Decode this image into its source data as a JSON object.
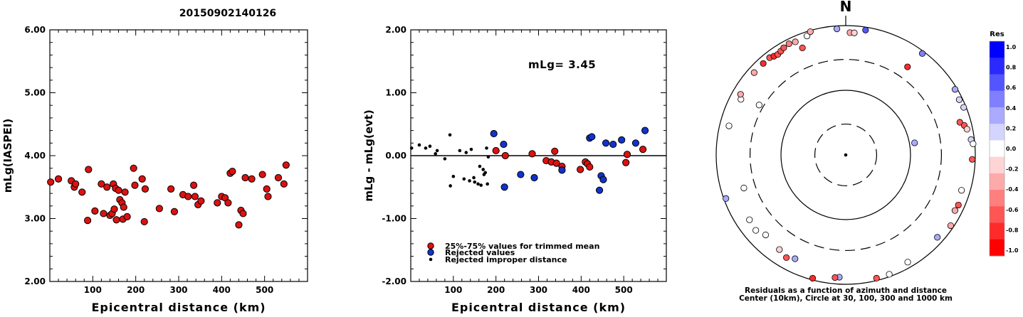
{
  "figure_title": "20150902140126",
  "chart_data": [
    {
      "type": "scatter",
      "id": "magnitude",
      "xlabel": "Epicentral distance (km)",
      "ylabel": "mLg(IASPEI)",
      "xlim": [
        0,
        600
      ],
      "ylim": [
        2.0,
        6.0
      ],
      "xticks": [
        100,
        200,
        300,
        400,
        500
      ],
      "yticks": [
        "6.00",
        "5.00",
        "4.00",
        "3.00",
        "2.00"
      ],
      "ytick_values": [
        6,
        5,
        4,
        3,
        2
      ],
      "marker_color": "#dd1111",
      "points": [
        [
          2,
          3.58
        ],
        [
          20,
          3.63
        ],
        [
          50,
          3.6
        ],
        [
          57,
          3.5
        ],
        [
          60,
          3.55
        ],
        [
          75,
          3.42
        ],
        [
          88,
          2.97
        ],
        [
          90,
          3.78
        ],
        [
          105,
          3.12
        ],
        [
          120,
          3.55
        ],
        [
          125,
          3.08
        ],
        [
          133,
          3.5
        ],
        [
          140,
          3.05
        ],
        [
          145,
          3.08
        ],
        [
          148,
          3.55
        ],
        [
          150,
          3.15
        ],
        [
          153,
          3.48
        ],
        [
          155,
          2.98
        ],
        [
          160,
          3.45
        ],
        [
          163,
          3.3
        ],
        [
          168,
          3.25
        ],
        [
          170,
          2.99
        ],
        [
          172,
          3.18
        ],
        [
          175,
          3.42
        ],
        [
          180,
          3.03
        ],
        [
          195,
          3.8
        ],
        [
          198,
          3.53
        ],
        [
          215,
          3.63
        ],
        [
          220,
          2.95
        ],
        [
          222,
          3.47
        ],
        [
          255,
          3.16
        ],
        [
          282,
          3.47
        ],
        [
          290,
          3.11
        ],
        [
          310,
          3.38
        ],
        [
          322,
          3.35
        ],
        [
          335,
          3.53
        ],
        [
          338,
          3.35
        ],
        [
          345,
          3.22
        ],
        [
          352,
          3.28
        ],
        [
          390,
          3.25
        ],
        [
          400,
          3.35
        ],
        [
          408,
          3.33
        ],
        [
          415,
          3.25
        ],
        [
          420,
          3.72
        ],
        [
          425,
          3.75
        ],
        [
          440,
          2.9
        ],
        [
          445,
          3.13
        ],
        [
          450,
          3.08
        ],
        [
          455,
          3.65
        ],
        [
          470,
          3.63
        ],
        [
          495,
          3.7
        ],
        [
          505,
          3.47
        ],
        [
          508,
          3.35
        ],
        [
          532,
          3.65
        ],
        [
          545,
          3.55
        ],
        [
          550,
          3.85
        ]
      ]
    },
    {
      "type": "scatter",
      "id": "residuals",
      "xlabel": "Epicentral distance (km)",
      "ylabel": "mLg - mLg(evt)",
      "xlim": [
        0,
        600
      ],
      "ylim": [
        -2.0,
        2.0
      ],
      "xticks": [
        100,
        200,
        300,
        400,
        500
      ],
      "yticks": [
        "2.00",
        "1.00",
        "0.00",
        "-1.00",
        "-2.00"
      ],
      "ytick_values": [
        2,
        1,
        0,
        -1,
        -2
      ],
      "annotation": "mLg= 3.45",
      "series": [
        {
          "name": "25%-75% values for trimmed mean",
          "color": "#dd1111",
          "marker": "circle",
          "points": [
            [
              200,
              0.08
            ],
            [
              222,
              0.0
            ],
            [
              285,
              0.03
            ],
            [
              318,
              -0.08
            ],
            [
              330,
              -0.1
            ],
            [
              338,
              0.07
            ],
            [
              342,
              -0.12
            ],
            [
              355,
              -0.17
            ],
            [
              398,
              -0.22
            ],
            [
              410,
              -0.1
            ],
            [
              415,
              -0.13
            ],
            [
              420,
              -0.18
            ],
            [
              505,
              -0.11
            ],
            [
              508,
              0.02
            ],
            [
              545,
              0.1
            ]
          ]
        },
        {
          "name": "Rejected values",
          "color": "#1133cc",
          "marker": "circle",
          "points": [
            [
              195,
              0.35
            ],
            [
              218,
              0.18
            ],
            [
              220,
              -0.5
            ],
            [
              258,
              -0.3
            ],
            [
              290,
              -0.35
            ],
            [
              355,
              -0.23
            ],
            [
              420,
              0.28
            ],
            [
              425,
              0.3
            ],
            [
              443,
              -0.55
            ],
            [
              447,
              -0.32
            ],
            [
              452,
              -0.38
            ],
            [
              458,
              0.2
            ],
            [
              475,
              0.18
            ],
            [
              495,
              0.25
            ],
            [
              528,
              0.2
            ],
            [
              550,
              0.4
            ]
          ]
        },
        {
          "name": "Rejected improper distance",
          "color": "#000000",
          "marker": "dot",
          "points": [
            [
              2,
              0.12
            ],
            [
              20,
              0.17
            ],
            [
              35,
              0.12
            ],
            [
              45,
              0.15
            ],
            [
              58,
              0.03
            ],
            [
              62,
              0.08
            ],
            [
              80,
              -0.05
            ],
            [
              92,
              0.33
            ],
            [
              93,
              -0.48
            ],
            [
              100,
              -0.33
            ],
            [
              115,
              0.08
            ],
            [
              125,
              -0.37
            ],
            [
              130,
              0.05
            ],
            [
              138,
              -0.4
            ],
            [
              142,
              0.1
            ],
            [
              148,
              -0.35
            ],
            [
              150,
              -0.42
            ],
            [
              158,
              -0.45
            ],
            [
              162,
              -0.17
            ],
            [
              165,
              -0.47
            ],
            [
              170,
              -0.22
            ],
            [
              172,
              -0.3
            ],
            [
              175,
              -0.27
            ],
            [
              178,
              0.12
            ],
            [
              180,
              -0.45
            ],
            [
              182,
              -0.02
            ]
          ]
        }
      ]
    },
    {
      "type": "polar_scatter",
      "id": "azimuth",
      "north_label": "N",
      "caption_line1": "Residuals as a function of azimuth and distance",
      "caption_line2": "Center (10km), Circle at 30, 100, 300 and 1000 km",
      "rings_km": [
        30,
        100,
        300,
        1000
      ],
      "colorbar": {
        "title": "Res",
        "ticks": [
          "1.0",
          "0.8",
          "0.6",
          "0.4",
          "0.2",
          "0.0",
          "-0.2",
          "-0.4",
          "-0.6",
          "-0.8",
          "-1.0"
        ],
        "colors": [
          "#0000ff",
          "#2a2aff",
          "#5555ff",
          "#7f7fff",
          "#aaaaff",
          "#d4d4ff",
          "#ffffff",
          "#ffd4d4",
          "#ffaaaa",
          "#ff7f7f",
          "#ff5555",
          "#ff2a2a",
          "#ff0000"
        ]
      },
      "points": [
        {
          "az": -4,
          "dist": 900,
          "res": 0.4
        },
        {
          "az": 9,
          "dist": 900,
          "res": 0.6
        },
        {
          "az": 2,
          "dist": 780,
          "res": -0.4
        },
        {
          "az": 4,
          "dist": 780,
          "res": -0.1
        },
        {
          "az": 37,
          "dist": 920,
          "res": 0.5
        },
        {
          "az": 59,
          "dist": 930,
          "res": 0.4
        },
        {
          "az": 64,
          "dist": 890,
          "res": 0.2
        },
        {
          "az": 68,
          "dist": 920,
          "res": 0.2
        },
        {
          "az": 74,
          "dist": 680,
          "res": -0.6
        },
        {
          "az": 76,
          "dist": 770,
          "res": -0.6
        },
        {
          "az": 78,
          "dist": 820,
          "res": -0.2
        },
        {
          "az": 83,
          "dist": 890,
          "res": 0.1
        },
        {
          "az": 85,
          "dist": 940,
          "res": 0.0
        },
        {
          "az": 92,
          "dist": 900,
          "res": -0.6
        },
        {
          "az": 107,
          "dist": 740,
          "res": 0.0
        },
        {
          "az": 114,
          "dist": 800,
          "res": -0.6
        },
        {
          "az": 117,
          "dist": 780,
          "res": -0.4
        },
        {
          "az": 124,
          "dist": 900,
          "res": -0.4
        },
        {
          "az": 132,
          "dist": 800,
          "res": 0.4
        },
        {
          "az": 150,
          "dist": 820,
          "res": 0.0
        },
        {
          "az": 160,
          "dist": 920,
          "res": 0.0
        },
        {
          "az": 166,
          "dist": 920,
          "res": -0.6
        },
        {
          "az": 183,
          "dist": 780,
          "res": 0.3
        },
        {
          "az": 185,
          "dist": 800,
          "res": -0.6
        },
        {
          "az": 195,
          "dist": 940,
          "res": -0.8
        },
        {
          "az": 206,
          "dist": 610,
          "res": 0.4
        },
        {
          "az": 210,
          "dist": 680,
          "res": -0.6
        },
        {
          "az": 215,
          "dist": 610,
          "res": -0.2
        },
        {
          "az": 225,
          "dist": 560,
          "res": 0.0
        },
        {
          "az": 230,
          "dist": 650,
          "res": 0.0
        },
        {
          "az": 236,
          "dist": 620,
          "res": 0.0
        },
        {
          "az": 250,
          "dist": 930,
          "res": 0.4
        },
        {
          "az": 252,
          "dist": 450,
          "res": 0.0
        },
        {
          "az": 284,
          "dist": 720,
          "res": 0.0
        },
        {
          "az": 298,
          "dist": 680,
          "res": 0.0
        },
        {
          "az": 300,
          "dist": 750,
          "res": -0.4
        },
        {
          "az": 312,
          "dist": 800,
          "res": -0.4
        },
        {
          "az": 318,
          "dist": 800,
          "res": -0.8
        },
        {
          "az": 322,
          "dist": 810,
          "res": -0.6
        },
        {
          "az": 324,
          "dist": 770,
          "res": -0.8
        },
        {
          "az": 326,
          "dist": 750,
          "res": -0.7
        },
        {
          "az": 328,
          "dist": 780,
          "res": -0.7
        },
        {
          "az": 330,
          "dist": 820,
          "res": -0.6
        },
        {
          "az": 333,
          "dist": 850,
          "res": -0.5
        },
        {
          "az": 336,
          "dist": 820,
          "res": -0.3
        },
        {
          "az": 338,
          "dist": 610,
          "res": -0.6
        },
        {
          "az": 342,
          "dist": 860,
          "res": 0.0
        },
        {
          "az": 344,
          "dist": 960,
          "res": -0.3
        },
        {
          "az": 35,
          "dist": 460,
          "res": -0.8
        },
        {
          "az": 80,
          "dist": 120,
          "res": 0.4
        },
        {
          "az": 300,
          "dist": 350,
          "res": 0.0
        }
      ]
    }
  ]
}
